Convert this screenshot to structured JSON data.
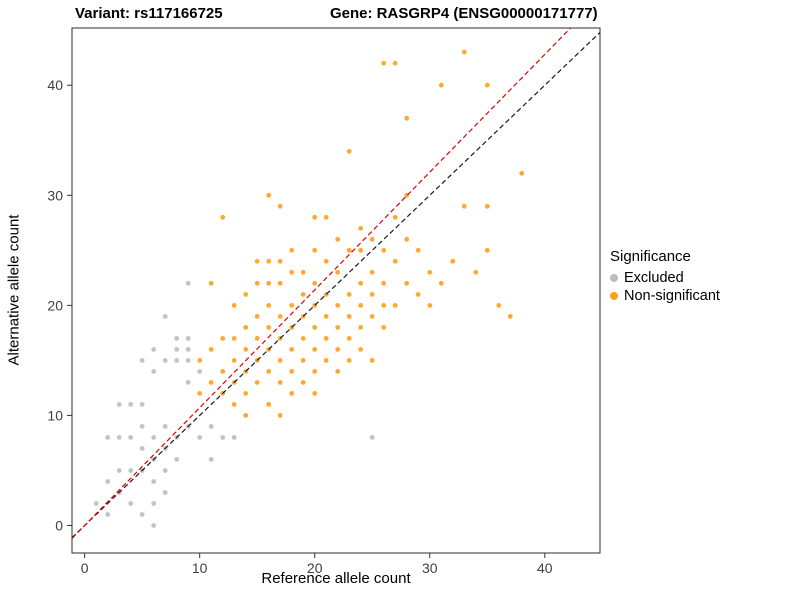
{
  "titles": {
    "left": "Variant: rs117166725",
    "right": "Gene: RASGRP4 (ENSG00000171777)"
  },
  "chart_data": {
    "type": "scatter",
    "title_left": "Variant: rs117166725",
    "title_right": "Gene: RASGRP4 (ENSG00000171777)",
    "xlabel": "Reference allele count",
    "ylabel": "Alternative allele count",
    "xlim": [
      -1.1,
      44.8
    ],
    "ylim": [
      -2.5,
      45.2
    ],
    "x_ticks": [
      0,
      10,
      20,
      30,
      40
    ],
    "y_ticks": [
      0,
      10,
      20,
      30,
      40
    ],
    "grid": false,
    "panel_border_color": "#2e2e2e",
    "tick_label_color": "#404040",
    "legend": {
      "title": "Significance",
      "position": "right"
    },
    "series": [
      {
        "name": "Excluded",
        "color": "#bdbdbd",
        "points": [
          [
            1,
            2
          ],
          [
            2,
            1
          ],
          [
            2,
            4
          ],
          [
            2,
            8
          ],
          [
            3,
            3
          ],
          [
            3,
            5
          ],
          [
            3,
            8
          ],
          [
            3,
            11
          ],
          [
            4,
            2
          ],
          [
            4,
            5
          ],
          [
            4,
            8
          ],
          [
            4,
            11
          ],
          [
            5,
            1
          ],
          [
            5,
            5
          ],
          [
            5,
            7
          ],
          [
            5,
            9
          ],
          [
            5,
            11
          ],
          [
            5,
            15
          ],
          [
            6,
            0
          ],
          [
            6,
            2
          ],
          [
            6,
            4
          ],
          [
            6,
            6
          ],
          [
            6,
            8
          ],
          [
            6,
            14
          ],
          [
            6,
            16
          ],
          [
            7,
            3
          ],
          [
            7,
            5
          ],
          [
            7,
            7
          ],
          [
            7,
            9
          ],
          [
            7,
            15
          ],
          [
            7,
            19
          ],
          [
            8,
            6
          ],
          [
            8,
            8
          ],
          [
            8,
            15
          ],
          [
            8,
            16
          ],
          [
            8,
            17
          ],
          [
            9,
            9
          ],
          [
            9,
            13
          ],
          [
            9,
            15
          ],
          [
            9,
            16
          ],
          [
            9,
            17
          ],
          [
            9,
            22
          ],
          [
            10,
            8
          ],
          [
            10,
            14
          ],
          [
            11,
            6
          ],
          [
            11,
            9
          ],
          [
            12,
            8
          ],
          [
            13,
            8
          ],
          [
            25,
            8
          ]
        ]
      },
      {
        "name": "Non-significant",
        "color": "#FFA01E",
        "points": [
          [
            10,
            12
          ],
          [
            10,
            15
          ],
          [
            11,
            13
          ],
          [
            11,
            16
          ],
          [
            11,
            22
          ],
          [
            12,
            12
          ],
          [
            12,
            14
          ],
          [
            12,
            17
          ],
          [
            12,
            28
          ],
          [
            13,
            11
          ],
          [
            13,
            13
          ],
          [
            13,
            15
          ],
          [
            13,
            17
          ],
          [
            13,
            20
          ],
          [
            14,
            10
          ],
          [
            14,
            12
          ],
          [
            14,
            14
          ],
          [
            14,
            16
          ],
          [
            14,
            18
          ],
          [
            14,
            21
          ],
          [
            15,
            13
          ],
          [
            15,
            15
          ],
          [
            15,
            17
          ],
          [
            15,
            19
          ],
          [
            15,
            22
          ],
          [
            15,
            24
          ],
          [
            16,
            11
          ],
          [
            16,
            14
          ],
          [
            16,
            16
          ],
          [
            16,
            18
          ],
          [
            16,
            20
          ],
          [
            16,
            22
          ],
          [
            16,
            24
          ],
          [
            16,
            30
          ],
          [
            17,
            10
          ],
          [
            17,
            13
          ],
          [
            17,
            15
          ],
          [
            17,
            17
          ],
          [
            17,
            19
          ],
          [
            17,
            22
          ],
          [
            17,
            24
          ],
          [
            17,
            29
          ],
          [
            18,
            12
          ],
          [
            18,
            14
          ],
          [
            18,
            16
          ],
          [
            18,
            18
          ],
          [
            18,
            20
          ],
          [
            18,
            23
          ],
          [
            18,
            25
          ],
          [
            19,
            13
          ],
          [
            19,
            15
          ],
          [
            19,
            17
          ],
          [
            19,
            19
          ],
          [
            19,
            21
          ],
          [
            19,
            23
          ],
          [
            20,
            12
          ],
          [
            20,
            14
          ],
          [
            20,
            16
          ],
          [
            20,
            18
          ],
          [
            20,
            20
          ],
          [
            20,
            22
          ],
          [
            20,
            25
          ],
          [
            20,
            28
          ],
          [
            21,
            15
          ],
          [
            21,
            17
          ],
          [
            21,
            19
          ],
          [
            21,
            21
          ],
          [
            21,
            24
          ],
          [
            21,
            28
          ],
          [
            22,
            14
          ],
          [
            22,
            16
          ],
          [
            22,
            18
          ],
          [
            22,
            20
          ],
          [
            22,
            23
          ],
          [
            22,
            26
          ],
          [
            23,
            15
          ],
          [
            23,
            17
          ],
          [
            23,
            19
          ],
          [
            23,
            21
          ],
          [
            23,
            25
          ],
          [
            23,
            34
          ],
          [
            24,
            16
          ],
          [
            24,
            18
          ],
          [
            24,
            20
          ],
          [
            24,
            22
          ],
          [
            24,
            25
          ],
          [
            24,
            27
          ],
          [
            25,
            15
          ],
          [
            25,
            19
          ],
          [
            25,
            21
          ],
          [
            25,
            23
          ],
          [
            25,
            26
          ],
          [
            26,
            18
          ],
          [
            26,
            20
          ],
          [
            26,
            22
          ],
          [
            26,
            25
          ],
          [
            26,
            42
          ],
          [
            27,
            20
          ],
          [
            27,
            24
          ],
          [
            27,
            28
          ],
          [
            27,
            42
          ],
          [
            28,
            22
          ],
          [
            28,
            26
          ],
          [
            28,
            30
          ],
          [
            28,
            37
          ],
          [
            29,
            21
          ],
          [
            29,
            25
          ],
          [
            30,
            20
          ],
          [
            30,
            23
          ],
          [
            31,
            22
          ],
          [
            31,
            40
          ],
          [
            32,
            24
          ],
          [
            33,
            29
          ],
          [
            33,
            43
          ],
          [
            34,
            23
          ],
          [
            35,
            25
          ],
          [
            35,
            29
          ],
          [
            35,
            40
          ],
          [
            36,
            20
          ],
          [
            37,
            19
          ],
          [
            38,
            32
          ]
        ]
      }
    ],
    "reference_lines": [
      {
        "name": "identity-line",
        "slope": 1,
        "intercept": 0,
        "color": "#1a1a1a",
        "dash": "5,3"
      },
      {
        "name": "fitted-line",
        "slope": 1.07,
        "intercept": 0,
        "color": "#e10000",
        "dash": "5,3"
      }
    ]
  }
}
